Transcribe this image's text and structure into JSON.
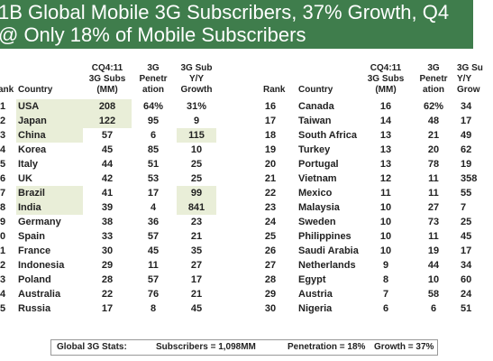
{
  "title": {
    "line1": "1B Global Mobile 3G Subscribers, 37% Growth, Q4",
    "line2": "@ Only 18% of Mobile Subscribers"
  },
  "headers": {
    "rank": "ank",
    "country": "Country",
    "subs": [
      "CQ4:11",
      "3G Subs",
      "(MM)"
    ],
    "penetration": [
      "3G",
      "Penetr",
      "ation"
    ],
    "growth": [
      "3G Sub",
      "Y/Y",
      "Growth"
    ]
  },
  "headers_right": {
    "rank": "Rank",
    "country": "Country",
    "subs": [
      "CQ4:11",
      "3G Subs",
      "(MM)"
    ],
    "penetration": [
      "3G",
      "Penetr",
      "ation"
    ],
    "growth": [
      "3G Su",
      "Y/Y",
      "Grow"
    ]
  },
  "chart_data": {
    "type": "table",
    "title": "1B Global Mobile 3G Subscribers, 37% Growth, Q4 @ Only 18% of Mobile Subscribers",
    "columns": [
      "Rank",
      "Country",
      "CQ4:11 3G Subs (MM)",
      "3G Penetration",
      "3G Sub Y/Y Growth"
    ],
    "left_rows": [
      {
        "rank": "1",
        "country": "USA",
        "subs": "208",
        "pen": "64%",
        "growth": "31%",
        "hl_country": true,
        "hl_subs": true,
        "hl_growth": false
      },
      {
        "rank": "2",
        "country": "Japan",
        "subs": "122",
        "pen": "95",
        "growth": "9",
        "hl_country": true,
        "hl_subs": true,
        "hl_growth": false
      },
      {
        "rank": "3",
        "country": "China",
        "subs": "57",
        "pen": "6",
        "growth": "115",
        "hl_country": true,
        "hl_subs": false,
        "hl_growth": true
      },
      {
        "rank": "4",
        "country": "Korea",
        "subs": "45",
        "pen": "85",
        "growth": "10",
        "hl_country": false,
        "hl_subs": false,
        "hl_growth": false
      },
      {
        "rank": "5",
        "country": "Italy",
        "subs": "44",
        "pen": "51",
        "growth": "25",
        "hl_country": false,
        "hl_subs": false,
        "hl_growth": false
      },
      {
        "rank": "6",
        "country": "UK",
        "subs": "42",
        "pen": "53",
        "growth": "25",
        "hl_country": false,
        "hl_subs": false,
        "hl_growth": false
      },
      {
        "rank": "7",
        "country": "Brazil",
        "subs": "41",
        "pen": "17",
        "growth": "99",
        "hl_country": true,
        "hl_subs": false,
        "hl_growth": true
      },
      {
        "rank": "8",
        "country": "India",
        "subs": "39",
        "pen": "4",
        "growth": "841",
        "hl_country": true,
        "hl_subs": false,
        "hl_growth": true
      },
      {
        "rank": "9",
        "country": "Germany",
        "subs": "38",
        "pen": "36",
        "growth": "23",
        "hl_country": false,
        "hl_subs": false,
        "hl_growth": false
      },
      {
        "rank": "0",
        "country": "Spain",
        "subs": "33",
        "pen": "57",
        "growth": "21",
        "hl_country": false,
        "hl_subs": false,
        "hl_growth": false
      },
      {
        "rank": "1",
        "country": "France",
        "subs": "30",
        "pen": "45",
        "growth": "35",
        "hl_country": false,
        "hl_subs": false,
        "hl_growth": false
      },
      {
        "rank": "2",
        "country": "Indonesia",
        "subs": "29",
        "pen": "11",
        "growth": "27",
        "hl_country": false,
        "hl_subs": false,
        "hl_growth": false
      },
      {
        "rank": "3",
        "country": "Poland",
        "subs": "28",
        "pen": "57",
        "growth": "17",
        "hl_country": false,
        "hl_subs": false,
        "hl_growth": false
      },
      {
        "rank": "4",
        "country": "Australia",
        "subs": "22",
        "pen": "76",
        "growth": "21",
        "hl_country": false,
        "hl_subs": false,
        "hl_growth": false
      },
      {
        "rank": "5",
        "country": "Russia",
        "subs": "17",
        "pen": "8",
        "growth": "45",
        "hl_country": false,
        "hl_subs": false,
        "hl_growth": false
      }
    ],
    "right_rows": [
      {
        "rank": "16",
        "country": "Canada",
        "subs": "16",
        "pen": "62%",
        "growth": "34"
      },
      {
        "rank": "17",
        "country": "Taiwan",
        "subs": "14",
        "pen": "48",
        "growth": "17"
      },
      {
        "rank": "18",
        "country": "South Africa",
        "subs": "13",
        "pen": "21",
        "growth": "49"
      },
      {
        "rank": "19",
        "country": "Turkey",
        "subs": "13",
        "pen": "20",
        "growth": "62"
      },
      {
        "rank": "20",
        "country": "Portugal",
        "subs": "13",
        "pen": "78",
        "growth": "19"
      },
      {
        "rank": "21",
        "country": "Vietnam",
        "subs": "12",
        "pen": "11",
        "growth": "358"
      },
      {
        "rank": "22",
        "country": "Mexico",
        "subs": "11",
        "pen": "11",
        "growth": "55"
      },
      {
        "rank": "23",
        "country": "Malaysia",
        "subs": "10",
        "pen": "27",
        "growth": "7"
      },
      {
        "rank": "24",
        "country": "Sweden",
        "subs": "10",
        "pen": "73",
        "growth": "25"
      },
      {
        "rank": "25",
        "country": "Philippines",
        "subs": "10",
        "pen": "11",
        "growth": "45"
      },
      {
        "rank": "26",
        "country": "Saudi Arabia",
        "subs": "10",
        "pen": "19",
        "growth": "17"
      },
      {
        "rank": "27",
        "country": "Netherlands",
        "subs": "9",
        "pen": "44",
        "growth": "34"
      },
      {
        "rank": "28",
        "country": "Egypt",
        "subs": "8",
        "pen": "10",
        "growth": "60"
      },
      {
        "rank": "29",
        "country": "Austria",
        "subs": "7",
        "pen": "58",
        "growth": "24"
      },
      {
        "rank": "30",
        "country": "Nigeria",
        "subs": "6",
        "pen": "6",
        "growth": "51"
      }
    ]
  },
  "stats": {
    "label": "Global 3G Stats:",
    "subscribers": "Subscribers = 1,098MM",
    "penetration": "Penetration = 18%",
    "growth": "Growth = 37%"
  },
  "colors": {
    "banner": "#3f7d4c",
    "highlight": "#e9eed8"
  }
}
